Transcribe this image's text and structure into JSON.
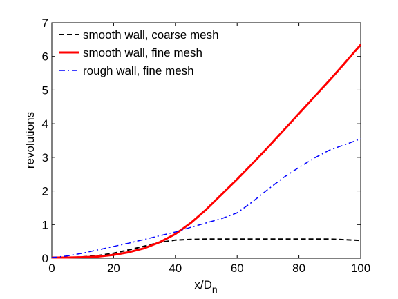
{
  "chart_data": {
    "type": "line",
    "title": "",
    "xlabel": "x/D",
    "xlabel_subscript": "n",
    "ylabel": "revolutions",
    "xlim": [
      0,
      100
    ],
    "ylim": [
      0,
      7
    ],
    "xticks": [
      0,
      20,
      40,
      60,
      80,
      100
    ],
    "yticks": [
      0,
      1,
      2,
      3,
      4,
      5,
      6,
      7
    ],
    "grid": false,
    "legend_position": "top-left",
    "series": [
      {
        "name": "smooth wall, coarse mesh",
        "color": "#000000",
        "style": "dashed",
        "x": [
          0,
          5,
          10,
          15,
          20,
          25,
          30,
          35,
          40,
          45,
          50,
          55,
          60,
          65,
          70,
          75,
          80,
          85,
          90,
          95,
          100
        ],
        "y": [
          0.02,
          0.02,
          0.04,
          0.08,
          0.15,
          0.25,
          0.36,
          0.47,
          0.54,
          0.56,
          0.57,
          0.57,
          0.57,
          0.57,
          0.57,
          0.57,
          0.57,
          0.57,
          0.57,
          0.55,
          0.53
        ]
      },
      {
        "name": "smooth wall, fine mesh",
        "color": "#ff0000",
        "style": "solid",
        "x": [
          0,
          5,
          10,
          15,
          20,
          25,
          30,
          35,
          40,
          45,
          50,
          55,
          60,
          65,
          70,
          75,
          80,
          85,
          90,
          95,
          100
        ],
        "y": [
          0.02,
          0.02,
          0.03,
          0.05,
          0.1,
          0.18,
          0.3,
          0.48,
          0.72,
          1.05,
          1.45,
          1.9,
          2.35,
          2.82,
          3.3,
          3.8,
          4.3,
          4.8,
          5.3,
          5.82,
          6.35
        ]
      },
      {
        "name": "rough wall, fine mesh",
        "color": "#0000ff",
        "style": "dashdot",
        "x": [
          0,
          5,
          10,
          15,
          20,
          25,
          30,
          35,
          40,
          45,
          50,
          55,
          60,
          65,
          70,
          75,
          80,
          85,
          90,
          95,
          100
        ],
        "y": [
          0.02,
          0.07,
          0.15,
          0.25,
          0.35,
          0.45,
          0.56,
          0.67,
          0.78,
          0.92,
          1.05,
          1.18,
          1.35,
          1.68,
          2.05,
          2.4,
          2.7,
          2.98,
          3.22,
          3.38,
          3.55
        ]
      }
    ]
  }
}
